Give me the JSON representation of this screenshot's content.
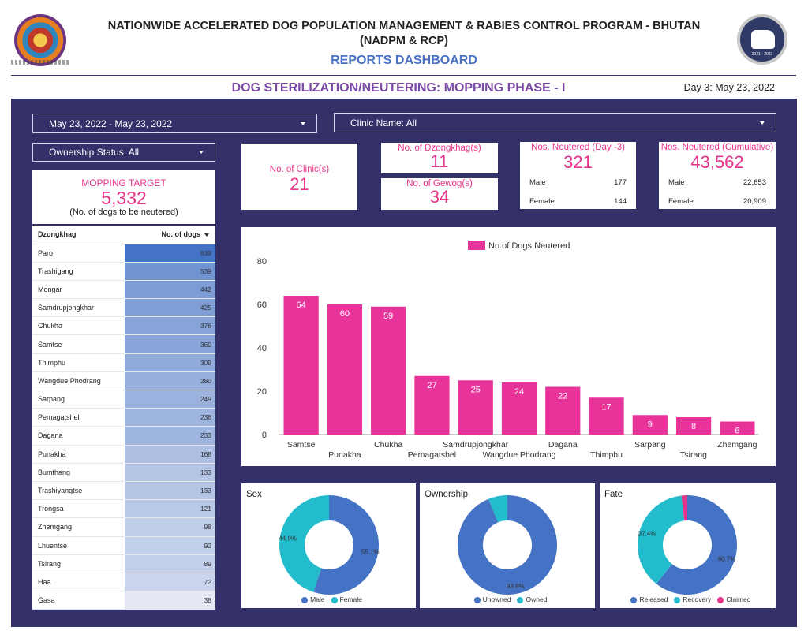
{
  "header": {
    "title_line1": "NATIONWIDE ACCELERATED DOG POPULATION MANAGEMENT & RABIES CONTROL PROGRAM - BHUTAN",
    "title_line2": "(NADPM & RCP)",
    "subtitle": "REPORTS DASHBOARD",
    "section_title": "DOG STERILIZATION/NEUTERING: MOPPING PHASE - I",
    "day_label": "Day 3: May 23, 2022",
    "logo_right_caption": "2021 - 2023"
  },
  "filters": {
    "date_range": "May 23, 2022 - May 23, 2022",
    "clinic": "Clinic Name: All",
    "ownership": "Ownership Status: All"
  },
  "target": {
    "label": "MOPPING TARGET",
    "value": "5,332",
    "note": "(No. of dogs to be neutered)"
  },
  "kpis": {
    "clinics": {
      "label": "No. of Clinic(s)",
      "value": "21"
    },
    "dzongkhags": {
      "label": "No. of Dzongkhag(s)",
      "value": "11"
    },
    "gewogs": {
      "label": "No. of Gewog(s)",
      "value": "34"
    },
    "neutered_day": {
      "label": "Nos. Neutered (Day -3)",
      "value": "321",
      "male_label": "Male",
      "male": "177",
      "female_label": "Female",
      "female": "144"
    },
    "neutered_cum": {
      "label": "Nos. Neutered (Cumulative)",
      "value": "43,562",
      "male_label": "Male",
      "male": "22,653",
      "female_label": "Female",
      "female": "20,909"
    }
  },
  "table": {
    "col1": "Dzongkhag",
    "col2": "No. of dogs",
    "rows": [
      {
        "name": "Paro",
        "value": "939"
      },
      {
        "name": "Trashigang",
        "value": "539"
      },
      {
        "name": "Mongar",
        "value": "442"
      },
      {
        "name": "Samdrupjongkhar",
        "value": "425"
      },
      {
        "name": "Chukha",
        "value": "376"
      },
      {
        "name": "Samtse",
        "value": "360"
      },
      {
        "name": "Thimphu",
        "value": "309"
      },
      {
        "name": "Wangdue Phodrang",
        "value": "280"
      },
      {
        "name": "Sarpang",
        "value": "249"
      },
      {
        "name": "Pemagatshel",
        "value": "236"
      },
      {
        "name": "Dagana",
        "value": "233"
      },
      {
        "name": "Punakha",
        "value": "168"
      },
      {
        "name": "Bumthang",
        "value": "133"
      },
      {
        "name": "Trashiyangtse",
        "value": "133"
      },
      {
        "name": "Trongsa",
        "value": "121"
      },
      {
        "name": "Zhemgang",
        "value": "98"
      },
      {
        "name": "Lhuentse",
        "value": "92"
      },
      {
        "name": "Tsirang",
        "value": "89"
      },
      {
        "name": "Haa",
        "value": "72"
      },
      {
        "name": "Gasa",
        "value": "38"
      }
    ]
  },
  "chart_data": [
    {
      "type": "bar",
      "title": "",
      "legend": "top",
      "categories": [
        "Samtse",
        "Punakha",
        "Chukha",
        "Pemagatshel",
        "Samdrupjongkhar",
        "Wangdue Phodrang",
        "Dagana",
        "Thimphu",
        "Sarpang",
        "Tsirang",
        "Zhemgang"
      ],
      "series": [
        {
          "name": "No.of Dogs Neutered",
          "values": [
            64,
            60,
            59,
            27,
            25,
            24,
            22,
            17,
            9,
            8,
            6
          ]
        }
      ],
      "ylim": [
        0,
        80
      ],
      "yticks": [
        0,
        20,
        40,
        60,
        80
      ],
      "grid": false,
      "color": "#e8339a"
    },
    {
      "type": "pie",
      "title": "Sex",
      "labels": [
        "Male",
        "Female"
      ],
      "values": [
        55.1,
        44.9
      ],
      "value_labels": [
        "55.1%",
        "44.9%"
      ],
      "colors": [
        "#4472c4",
        "#22bccc"
      ]
    },
    {
      "type": "pie",
      "title": "Ownership",
      "labels": [
        "Unowned",
        "Owned"
      ],
      "values": [
        93.8,
        6.2
      ],
      "value_labels": [
        "93.8%",
        ""
      ],
      "colors": [
        "#4472c4",
        "#22bccc"
      ]
    },
    {
      "type": "pie",
      "title": "Fate",
      "labels": [
        "Released",
        "Recovery",
        "Claimed"
      ],
      "values": [
        60.7,
        37.4,
        1.9
      ],
      "value_labels": [
        "60.7%",
        "37.4%",
        ""
      ],
      "colors": [
        "#4472c4",
        "#22bccc",
        "#e8338a"
      ]
    }
  ],
  "colors": {
    "panel": "#33306a",
    "accent_pink": "#e8338a",
    "heading_purple": "#7b4aa6",
    "heading_blue": "#4a72c4",
    "table_heat_max": "#4472c4",
    "table_heat_min": "#e4e9f5"
  }
}
